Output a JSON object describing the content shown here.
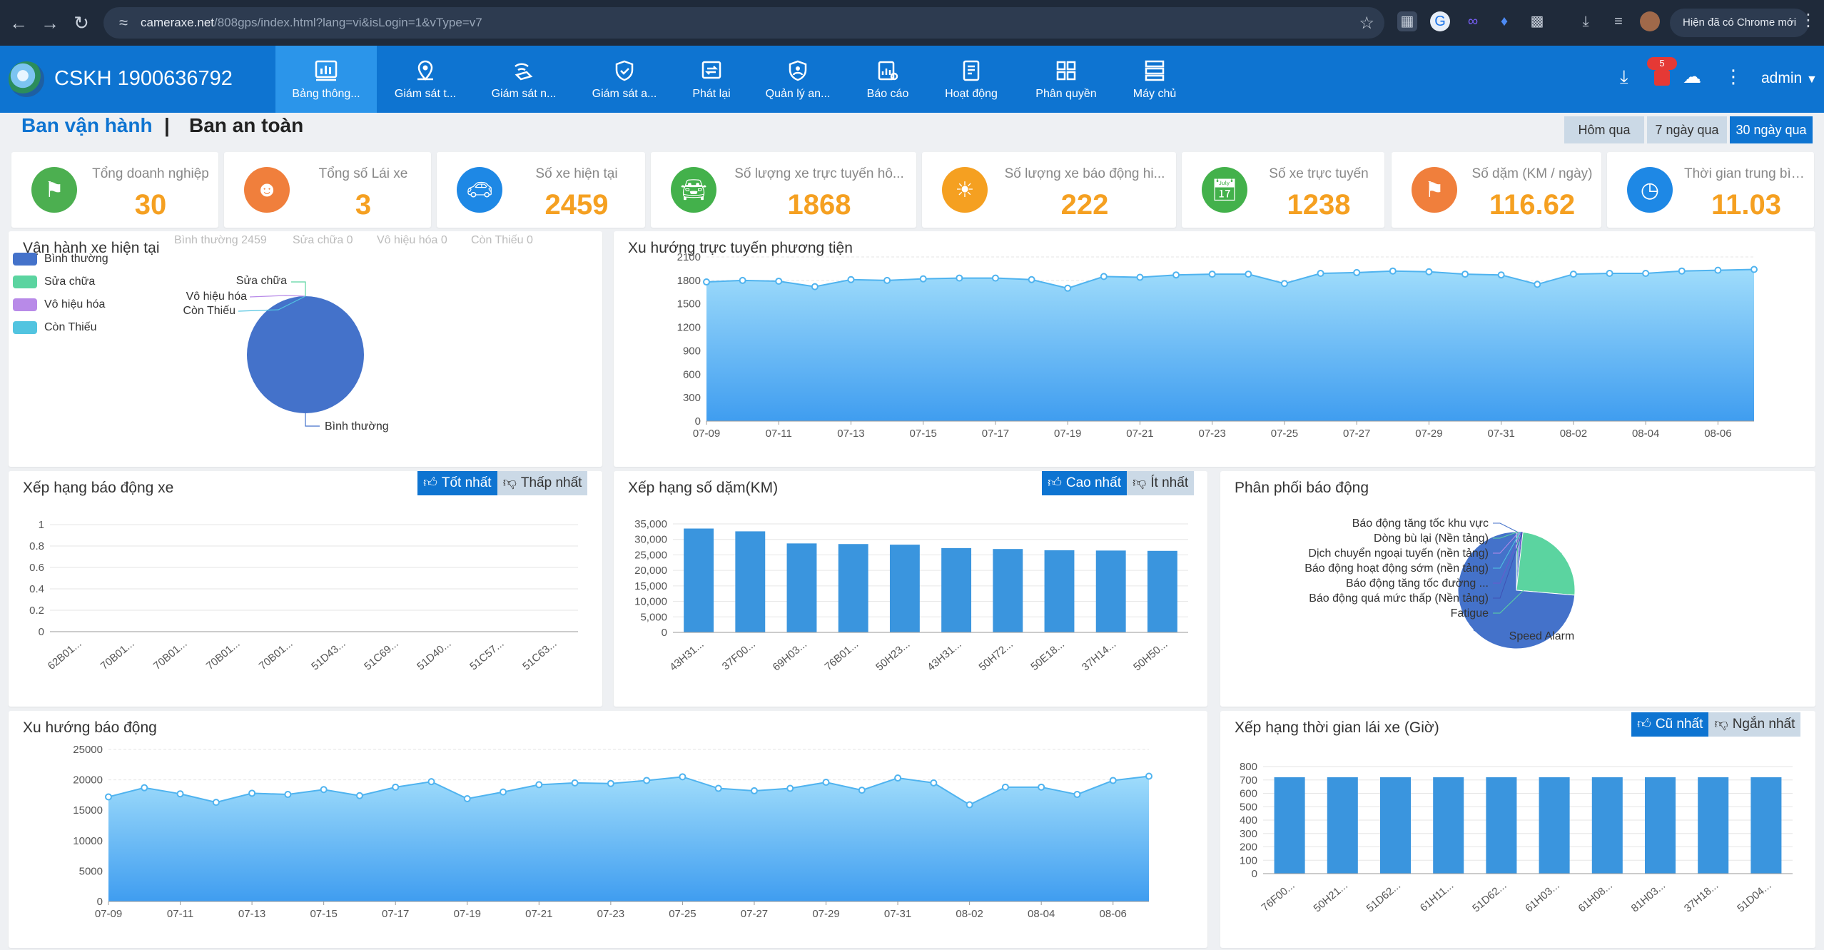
{
  "browser": {
    "url_host": "cameraxe.net",
    "url_path": "/808gps/index.html?lang=vi&isLogin=1&vType=v7",
    "update_label": "Hiện đã có Chrome mới"
  },
  "header": {
    "hotline": "CSKH 1900636792",
    "nav": [
      {
        "label": "Bảng thông...",
        "icon": "dashboard-icon"
      },
      {
        "label": "Giám sát t...",
        "icon": "map-pin-icon"
      },
      {
        "label": "Giám sát n...",
        "icon": "satellite-icon"
      },
      {
        "label": "Giám sát a...",
        "icon": "shield-icon"
      },
      {
        "label": "Phát lại",
        "icon": "playback-icon"
      },
      {
        "label": "Quản lý an...",
        "icon": "safety-shield-icon"
      },
      {
        "label": "Báo cáo",
        "icon": "report-chart-icon"
      },
      {
        "label": "Hoạt động",
        "icon": "activity-doc-icon"
      },
      {
        "label": "Phân quyền",
        "icon": "permission-grid-icon"
      },
      {
        "label": "Máy chủ",
        "icon": "server-icon"
      }
    ],
    "notification_count": "5",
    "user": "admin"
  },
  "subheader": {
    "tab_operation": "Ban vận hành",
    "separator": "|",
    "tab_safety": "Ban an toàn",
    "ranges": [
      "Hôm qua",
      "7 ngày qua",
      "30 ngày qua"
    ],
    "active_range": "30 ngày qua"
  },
  "kpis": [
    {
      "title": "Tổng doanh nghiệp",
      "value": "30",
      "icon": "flag-icon",
      "color": "#4caf50"
    },
    {
      "title": "Tổng số Lái xe",
      "value": "3",
      "icon": "driver-icon",
      "color": "#f07f3c"
    },
    {
      "title": "Số xe hiện tại",
      "value": "2459",
      "icon": "car-icon",
      "color": "#1e88e5"
    },
    {
      "title": "Số lượng xe trực tuyến hô...",
      "value": "1868",
      "icon": "car-online-icon",
      "color": "#43b14b"
    },
    {
      "title": "Số lượng xe báo động hi...",
      "value": "222",
      "icon": "alarm-light-icon",
      "color": "#f5a021"
    },
    {
      "title": "Số xe trực tuyến",
      "value": "1238",
      "icon": "calendar-icon",
      "color": "#43b14b"
    },
    {
      "title": "Số dặm (KM / ngày)",
      "value": "116.62",
      "icon": "finish-flag-icon",
      "color": "#f07f3c"
    },
    {
      "title": "Thời gian trung bình (...",
      "value": "11.03",
      "icon": "clock-icon",
      "color": "#1e88e5"
    }
  ],
  "panels": {
    "vehicle_status": {
      "title": "Vận hành xe hiện tại",
      "stats": [
        "Bình thường 2459",
        "Sửa chữa 0",
        "Vô hiệu hóa 0",
        "Còn Thiếu 0"
      ],
      "legend": [
        {
          "label": "Bình thường",
          "color": "#4472ca"
        },
        {
          "label": "Sửa chữa",
          "color": "#5bd4a0"
        },
        {
          "label": "Vô hiệu hóa",
          "color": "#b88ae8"
        },
        {
          "label": "Còn Thiếu",
          "color": "#52c4e0"
        }
      ]
    },
    "online_trend": {
      "title": "Xu hướng trực tuyến phương tiện"
    },
    "alarm_rank": {
      "title": "Xếp hạng báo động xe",
      "btn_best": "Tốt nhất",
      "btn_worst": "Thấp nhất"
    },
    "mileage_rank": {
      "title": "Xếp hạng số dặm(KM)",
      "btn_high": "Cao nhất",
      "btn_low": "Ít nhất"
    },
    "alarm_dist": {
      "title": "Phân phối báo động"
    },
    "alarm_trend": {
      "title": "Xu hướng báo động"
    },
    "drive_time_rank": {
      "title": "Xếp hạng thời gian lái xe (Giờ)",
      "btn_long": "Cũ nhất",
      "btn_short": "Ngắn nhất"
    }
  },
  "chart_data": [
    {
      "id": "vehicle_status",
      "type": "pie",
      "labels": [
        "Bình thường",
        "Sửa chữa",
        "Vô hiệu hóa",
        "Còn Thiếu"
      ],
      "values": [
        2459,
        0,
        0,
        0
      ],
      "colors": [
        "#4472ca",
        "#5bd4a0",
        "#b88ae8",
        "#52c4e0"
      ]
    },
    {
      "id": "online_trend",
      "type": "area",
      "x": [
        "07-09",
        "07-10",
        "07-11",
        "07-12",
        "07-13",
        "07-14",
        "07-15",
        "07-16",
        "07-17",
        "07-18",
        "07-19",
        "07-20",
        "07-21",
        "07-22",
        "07-23",
        "07-24",
        "07-25",
        "07-26",
        "07-27",
        "07-28",
        "07-29",
        "07-30",
        "07-31",
        "08-01",
        "08-02",
        "08-03",
        "08-04",
        "08-05",
        "08-06",
        "08-07"
      ],
      "x_ticks": [
        "07-09",
        "07-11",
        "07-13",
        "07-15",
        "07-17",
        "07-19",
        "07-21",
        "07-23",
        "07-25",
        "07-27",
        "07-29",
        "07-31",
        "08-02",
        "08-04",
        "08-06"
      ],
      "y_ticks": [
        0,
        300,
        600,
        900,
        1200,
        1500,
        1800,
        2100
      ],
      "values": [
        1780,
        1800,
        1790,
        1720,
        1810,
        1800,
        1820,
        1830,
        1830,
        1810,
        1700,
        1850,
        1840,
        1870,
        1880,
        1880,
        1760,
        1890,
        1900,
        1920,
        1910,
        1880,
        1870,
        1750,
        1880,
        1890,
        1890,
        1920,
        1930,
        1940
      ],
      "ylim": [
        0,
        2100
      ]
    },
    {
      "id": "alarm_rank",
      "type": "bar",
      "categories": [
        "62B01...",
        "70B01...",
        "70B01...",
        "70B01...",
        "70B01...",
        "51D43...",
        "51C69...",
        "51D40...",
        "51C57...",
        "51C63..."
      ],
      "values": [
        0,
        0,
        0,
        0,
        0,
        0,
        0,
        0,
        0,
        0
      ],
      "y_ticks": [
        0,
        0.2,
        0.4,
        0.6,
        0.8,
        1
      ],
      "ylim": [
        0,
        1
      ]
    },
    {
      "id": "mileage_rank",
      "type": "bar",
      "categories": [
        "43H31...",
        "37F00...",
        "69H03...",
        "76B01...",
        "50H23...",
        "43H31...",
        "50H72...",
        "50E18...",
        "37H14...",
        "50H50..."
      ],
      "values": [
        33500,
        32600,
        28700,
        28500,
        28300,
        27200,
        26900,
        26500,
        26400,
        26300
      ],
      "y_ticks": [
        "0",
        "5,000",
        "10,000",
        "15,000",
        "20,000",
        "25,000",
        "30,000",
        "35,000"
      ],
      "ylim": [
        0,
        35000
      ]
    },
    {
      "id": "alarm_dist",
      "type": "pie",
      "labels": [
        "Báo động tăng tốc khu vực",
        "Dòng bù lại (Nền tảng)",
        "Dịch chuyển ngoại tuyến (nền tảng)",
        "Báo động hoạt động sớm (nền tảng)",
        "Báo động tăng tốc đường ...",
        "Báo động quá mức thấp (Nền tảng)",
        "Fatigue",
        "Speed Alarm"
      ],
      "values": [
        0.3,
        0.3,
        0.3,
        0.3,
        0.3,
        0.3,
        25,
        75
      ],
      "colors": [
        "#4472ca",
        "#5bd4a0",
        "#b88ae8",
        "#52c4e0",
        "#6a5acd",
        "#3f51b5",
        "#5bd4a0",
        "#4472ca"
      ]
    },
    {
      "id": "alarm_trend",
      "type": "area",
      "x": [
        "07-09",
        "07-10",
        "07-11",
        "07-12",
        "07-13",
        "07-14",
        "07-15",
        "07-16",
        "07-17",
        "07-18",
        "07-19",
        "07-20",
        "07-21",
        "07-22",
        "07-23",
        "07-24",
        "07-25",
        "07-26",
        "07-27",
        "07-28",
        "07-29",
        "07-30",
        "07-31",
        "08-01",
        "08-02",
        "08-03",
        "08-04",
        "08-05",
        "08-06",
        "08-07"
      ],
      "x_ticks": [
        "07-09",
        "07-11",
        "07-13",
        "07-15",
        "07-17",
        "07-19",
        "07-21",
        "07-23",
        "07-25",
        "07-27",
        "07-29",
        "07-31",
        "08-02",
        "08-04",
        "08-06"
      ],
      "y_ticks": [
        0,
        5000,
        10000,
        15000,
        20000,
        25000
      ],
      "values": [
        17200,
        18700,
        17700,
        16300,
        17800,
        17600,
        18400,
        17400,
        18800,
        19700,
        16900,
        18000,
        19200,
        19500,
        19400,
        19900,
        20500,
        18600,
        18200,
        18600,
        19600,
        18300,
        20300,
        19500,
        15900,
        18800,
        18800,
        17600,
        19900,
        20600
      ],
      "ylim": [
        0,
        25000
      ]
    },
    {
      "id": "drive_time_rank",
      "type": "bar",
      "categories": [
        "76F00...",
        "50H21...",
        "51D62...",
        "61H11...",
        "51D62...",
        "61H03...",
        "61H08...",
        "81H03...",
        "37H18...",
        "51D04..."
      ],
      "values": [
        720,
        720,
        720,
        720,
        720,
        720,
        720,
        720,
        720,
        720
      ],
      "y_ticks": [
        0,
        100,
        200,
        300,
        400,
        500,
        600,
        700,
        800
      ],
      "ylim": [
        0,
        800
      ]
    }
  ]
}
